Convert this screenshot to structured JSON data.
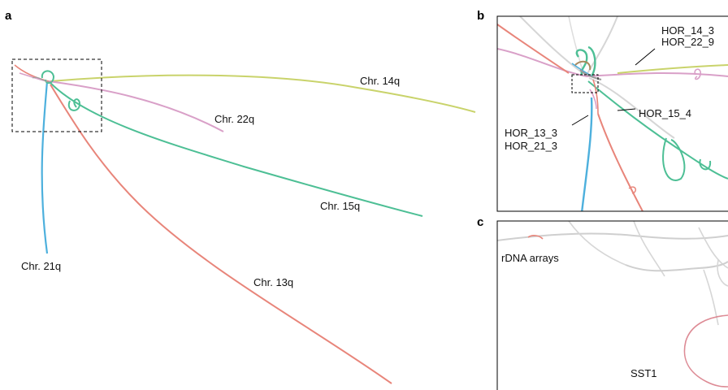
{
  "panels": {
    "a": {
      "letter": "a",
      "labels": {
        "chr14": "Chr. 14q",
        "chr22": "Chr. 22q",
        "chr15": "Chr. 15q",
        "chr21": "Chr. 21q",
        "chr13": "Chr. 13q"
      }
    },
    "b": {
      "letter": "b",
      "labels": {
        "hor14": "HOR_14_3",
        "hor22": "HOR_22_9",
        "hor15": "HOR_15_4",
        "hor13": "HOR_13_3",
        "hor21": "HOR_21_3"
      }
    },
    "c": {
      "letter": "c",
      "labels": {
        "rdna": "rDNA arrays",
        "sst1": "SST1"
      }
    }
  },
  "colors": {
    "chr13": "#e8857a",
    "chr14": "#c9d36b",
    "chr15": "#4dbf95",
    "chr21": "#4db0dd",
    "chr22": "#d9a0c8",
    "grey": "#cccccc"
  }
}
